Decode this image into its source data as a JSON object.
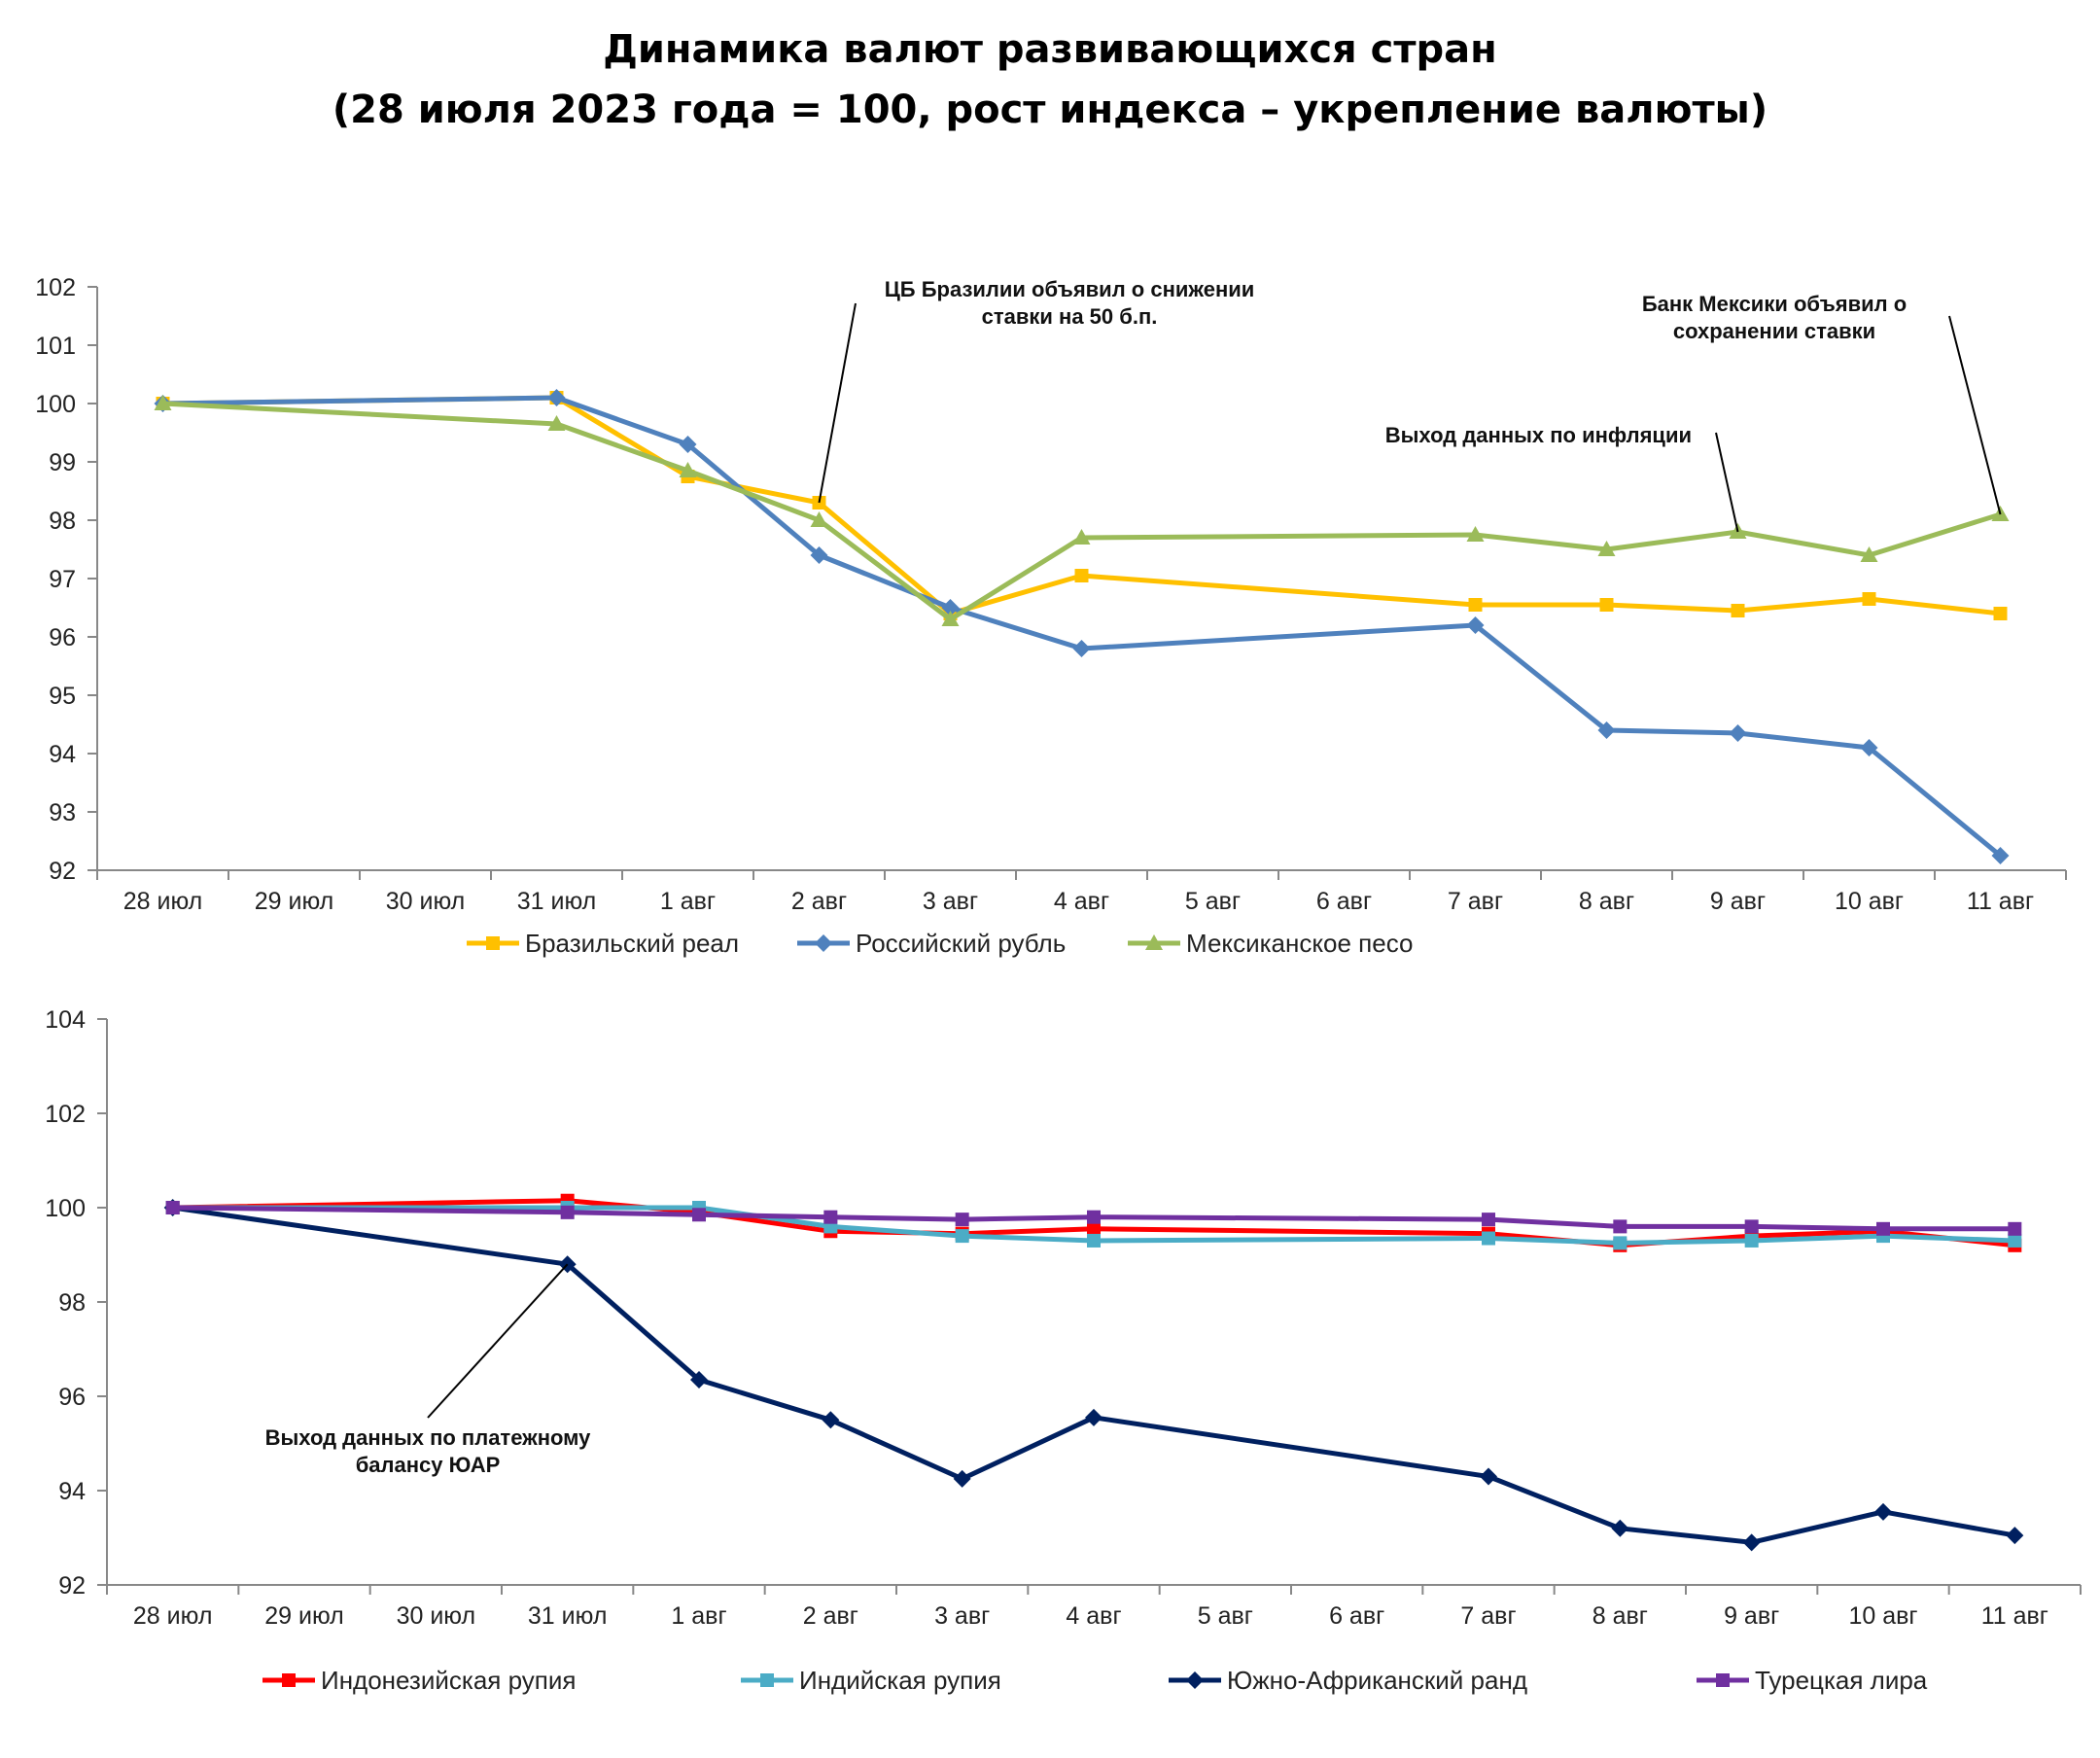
{
  "title_line1": "Динамика валют развивающихся стран",
  "title_line2": "(28 июля 2023 года = 100, рост индекса – укрепление валюты)",
  "chart_data": [
    {
      "type": "line",
      "categories": [
        "28 июл",
        "29 июл",
        "30 июл",
        "31 июл",
        "1 авг",
        "2 авг",
        "3 авг",
        "4 авг",
        "5 авг",
        "6 авг",
        "7 авг",
        "8 авг",
        "9 авг",
        "10 авг",
        "11 авг"
      ],
      "ylim": [
        92,
        102
      ],
      "yticks": [
        92,
        93,
        94,
        95,
        96,
        97,
        98,
        99,
        100,
        101,
        102
      ],
      "series": [
        {
          "name": "Бразильский реал",
          "color": "#FFC000",
          "marker": "square",
          "values": [
            100,
            null,
            null,
            100.1,
            98.75,
            98.3,
            96.4,
            97.05,
            null,
            null,
            96.55,
            96.55,
            96.45,
            96.65,
            96.4
          ]
        },
        {
          "name": "Российский рубль",
          "color": "#4F81BD",
          "marker": "diamond",
          "values": [
            100,
            null,
            null,
            100.1,
            99.3,
            97.4,
            96.5,
            95.8,
            null,
            null,
            96.2,
            94.4,
            94.35,
            94.1,
            92.25
          ]
        },
        {
          "name": "Мексиканское песо",
          "color": "#9BBB59",
          "marker": "triangle",
          "values": [
            100,
            null,
            null,
            99.65,
            98.85,
            98.0,
            96.3,
            97.7,
            null,
            null,
            97.75,
            97.5,
            97.8,
            97.4,
            98.1
          ]
        }
      ],
      "annotations": [
        {
          "text_lines": [
            "ЦБ Бразилии объявил о снижении",
            "ставки на 50 б.п."
          ],
          "target_category": "2 авг",
          "target_value": 98.3
        },
        {
          "text_lines": [
            "Банк Мексики объявил о",
            "сохранении ставки"
          ],
          "target_category": "11 авг",
          "target_value": 98.1
        },
        {
          "text_lines": [
            "Выход данных по инфляции"
          ],
          "target_category": "9 авг",
          "target_value": 97.8
        }
      ]
    },
    {
      "type": "line",
      "categories": [
        "28 июл",
        "29 июл",
        "30 июл",
        "31 июл",
        "1 авг",
        "2 авг",
        "3 авг",
        "4 авг",
        "5 авг",
        "6 авг",
        "7 авг",
        "8 авг",
        "9 авг",
        "10 авг",
        "11 авг"
      ],
      "ylim": [
        92,
        104
      ],
      "yticks": [
        92,
        94,
        96,
        98,
        100,
        102,
        104
      ],
      "series": [
        {
          "name": "Индонезийская рупия",
          "color": "#FF0000",
          "marker": "square",
          "values": [
            100,
            null,
            null,
            100.15,
            99.9,
            99.5,
            99.45,
            99.55,
            null,
            null,
            99.45,
            99.2,
            99.4,
            99.5,
            99.2
          ]
        },
        {
          "name": "Индийская рупия",
          "color": "#4BACC6",
          "marker": "square",
          "values": [
            100,
            null,
            null,
            100.0,
            100.0,
            99.6,
            99.4,
            99.3,
            null,
            null,
            99.35,
            99.25,
            99.3,
            99.4,
            99.3
          ]
        },
        {
          "name": "Южно-Африканский ранд",
          "color": "#002060",
          "marker": "diamond",
          "values": [
            100,
            null,
            null,
            98.8,
            96.35,
            95.5,
            94.25,
            95.55,
            null,
            null,
            94.3,
            93.2,
            92.9,
            93.55,
            93.05
          ]
        },
        {
          "name": "Турецкая лира",
          "color": "#7030A0",
          "marker": "square",
          "values": [
            100,
            null,
            null,
            99.9,
            99.85,
            99.8,
            99.75,
            99.8,
            null,
            null,
            99.75,
            99.6,
            99.6,
            99.55,
            99.55
          ]
        }
      ],
      "annotations": [
        {
          "text_lines": [
            "Выход данных по платежному",
            "балансу ЮАР"
          ],
          "target_category": "31 июл",
          "target_value": 98.8
        }
      ]
    }
  ]
}
